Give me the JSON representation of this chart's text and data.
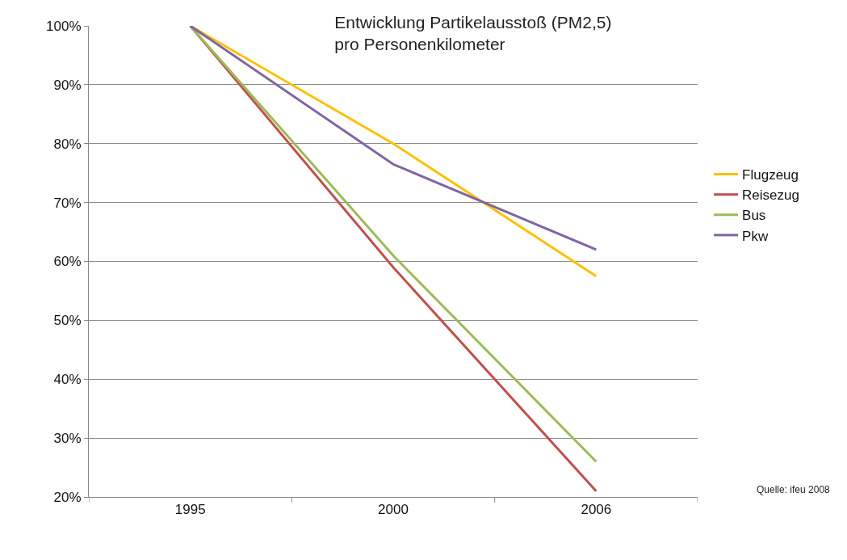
{
  "chart_data": {
    "type": "line",
    "title": "Entwicklung Partikelausstoß (PM2,5)\npro Personenkilometer",
    "categories": [
      "1995",
      "2000",
      "2006"
    ],
    "series": [
      {
        "name": "Flugzeug",
        "color": "#ffc000",
        "values": [
          100,
          80,
          57.5
        ]
      },
      {
        "name": "Reisezug",
        "color": "#c0504d",
        "values": [
          100,
          59,
          21
        ]
      },
      {
        "name": "Bus",
        "color": "#9bbb59",
        "values": [
          100,
          61,
          26
        ]
      },
      {
        "name": "Pkw",
        "color": "#8064a2",
        "values": [
          100,
          76.5,
          62
        ]
      }
    ],
    "ylim": [
      20,
      100
    ],
    "yticks": [
      {
        "value": 20,
        "label": "20%"
      },
      {
        "value": 30,
        "label": "30%"
      },
      {
        "value": 40,
        "label": "40%"
      },
      {
        "value": 50,
        "label": "50%"
      },
      {
        "value": 60,
        "label": "60%"
      },
      {
        "value": 70,
        "label": "70%"
      },
      {
        "value": 80,
        "label": "80%"
      },
      {
        "value": 90,
        "label": "90%"
      },
      {
        "value": 100,
        "label": "100%"
      }
    ],
    "grid": "y",
    "legend": "right",
    "marker": "none",
    "line_style": "solid",
    "annotations": [
      "Quelle: ifeu 2008"
    ]
  }
}
